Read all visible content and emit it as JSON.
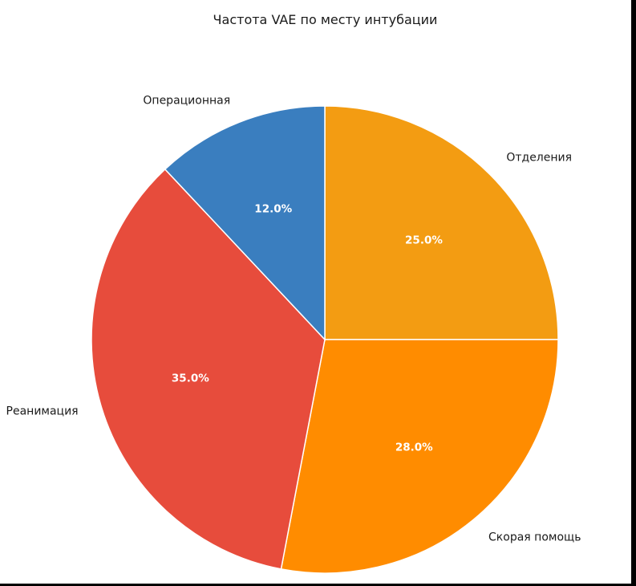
{
  "chart_data": {
    "type": "pie",
    "title": "Частота VAE по месту интубации",
    "slices": [
      {
        "label": "Отделения",
        "value": 25.0,
        "pct_label": "25.0%",
        "color": "#f39c12"
      },
      {
        "label": "Скорая помощь",
        "value": 28.0,
        "pct_label": "28.0%",
        "color": "#ff8c00"
      },
      {
        "label": "Реанимация",
        "value": 35.0,
        "pct_label": "35.0%",
        "color": "#e74c3c"
      },
      {
        "label": "Операционная",
        "value": 12.0,
        "pct_label": "12.0%",
        "color": "#3a7ebf"
      }
    ],
    "start_angle": "top",
    "direction": "clockwise",
    "edge_color": "#ffffff"
  }
}
